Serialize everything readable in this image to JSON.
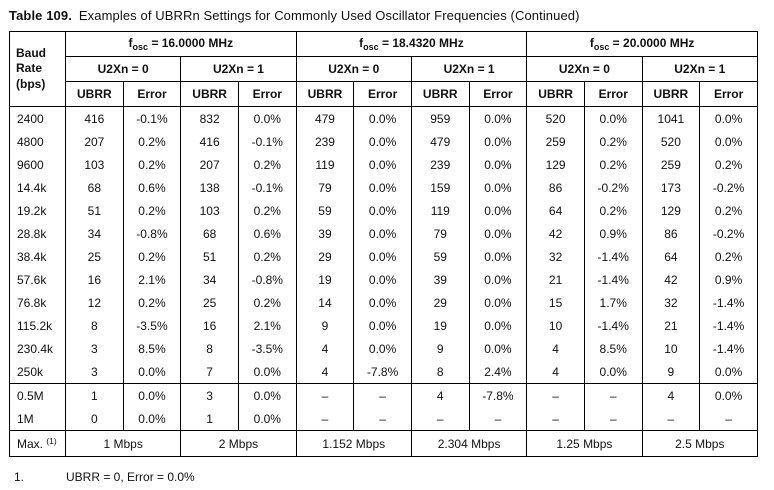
{
  "colors": {
    "background": "#ffffff",
    "text": "#111111",
    "border": "#000000"
  },
  "title": {
    "label": "Table 109.",
    "text": "Examples of UBRRn Settings for Commonly Used Oscillator Frequencies (Continued)"
  },
  "table": {
    "baud_header": "Baud Rate (bps)",
    "groups": [
      {
        "sym": "f",
        "sub": "osc",
        "rest": " = 16.0000 MHz"
      },
      {
        "sym": "f",
        "sub": "osc",
        "rest": " = 18.4320 MHz"
      },
      {
        "sym": "f",
        "sub": "osc",
        "rest": " = 20.0000 MHz"
      }
    ],
    "u2x_labels": [
      "U2Xn = 0",
      "U2Xn = 1"
    ],
    "col_headers": [
      "UBRR",
      "Error"
    ],
    "rows": [
      {
        "baud": "2400",
        "values": [
          "416",
          "-0.1%",
          "832",
          "0.0%",
          "479",
          "0.0%",
          "959",
          "0.0%",
          "520",
          "0.0%",
          "1041",
          "0.0%"
        ]
      },
      {
        "baud": "4800",
        "values": [
          "207",
          "0.2%",
          "416",
          "-0.1%",
          "239",
          "0.0%",
          "479",
          "0.0%",
          "259",
          "0.2%",
          "520",
          "0.0%"
        ]
      },
      {
        "baud": "9600",
        "values": [
          "103",
          "0.2%",
          "207",
          "0.2%",
          "119",
          "0.0%",
          "239",
          "0.0%",
          "129",
          "0.2%",
          "259",
          "0.2%"
        ]
      },
      {
        "baud": "14.4k",
        "values": [
          "68",
          "0.6%",
          "138",
          "-0.1%",
          "79",
          "0.0%",
          "159",
          "0.0%",
          "86",
          "-0.2%",
          "173",
          "-0.2%"
        ]
      },
      {
        "baud": "19.2k",
        "values": [
          "51",
          "0.2%",
          "103",
          "0.2%",
          "59",
          "0.0%",
          "119",
          "0.0%",
          "64",
          "0.2%",
          "129",
          "0.2%"
        ]
      },
      {
        "baud": "28.8k",
        "values": [
          "34",
          "-0.8%",
          "68",
          "0.6%",
          "39",
          "0.0%",
          "79",
          "0.0%",
          "42",
          "0.9%",
          "86",
          "-0.2%"
        ]
      },
      {
        "baud": "38.4k",
        "values": [
          "25",
          "0.2%",
          "51",
          "0.2%",
          "29",
          "0.0%",
          "59",
          "0.0%",
          "32",
          "-1.4%",
          "64",
          "0.2%"
        ]
      },
      {
        "baud": "57.6k",
        "values": [
          "16",
          "2.1%",
          "34",
          "-0.8%",
          "19",
          "0.0%",
          "39",
          "0.0%",
          "21",
          "-1.4%",
          "42",
          "0.9%"
        ]
      },
      {
        "baud": "76.8k",
        "values": [
          "12",
          "0.2%",
          "25",
          "0.2%",
          "14",
          "0.0%",
          "29",
          "0.0%",
          "15",
          "1.7%",
          "32",
          "-1.4%"
        ]
      },
      {
        "baud": "115.2k",
        "values": [
          "8",
          "-3.5%",
          "16",
          "2.1%",
          "9",
          "0.0%",
          "19",
          "0.0%",
          "10",
          "-1.4%",
          "21",
          "-1.4%"
        ]
      },
      {
        "baud": "230.4k",
        "values": [
          "3",
          "8.5%",
          "8",
          "-3.5%",
          "4",
          "0.0%",
          "9",
          "0.0%",
          "4",
          "8.5%",
          "10",
          "-1.4%"
        ]
      },
      {
        "baud": "250k",
        "values": [
          "3",
          "0.0%",
          "7",
          "0.0%",
          "4",
          "-7.8%",
          "8",
          "2.4%",
          "4",
          "0.0%",
          "9",
          "0.0%"
        ]
      }
    ],
    "rows_high_speed": [
      {
        "baud": "0.5M",
        "values": [
          "1",
          "0.0%",
          "3",
          "0.0%",
          "–",
          "–",
          "4",
          "-7.8%",
          "–",
          "–",
          "4",
          "0.0%"
        ]
      },
      {
        "baud": "1M",
        "values": [
          "0",
          "0.0%",
          "1",
          "0.0%",
          "–",
          "–",
          "–",
          "–",
          "–",
          "–",
          "–",
          "–"
        ]
      }
    ],
    "max_row": {
      "label": "Max.",
      "sup": "(1)",
      "values": [
        "1 Mbps",
        "2 Mbps",
        "1.152 Mbps",
        "2.304 Mbps",
        "1.25 Mbps",
        "2.5 Mbps"
      ]
    }
  },
  "footnote": {
    "number": "1.",
    "text": "UBRR = 0, Error = 0.0%"
  }
}
